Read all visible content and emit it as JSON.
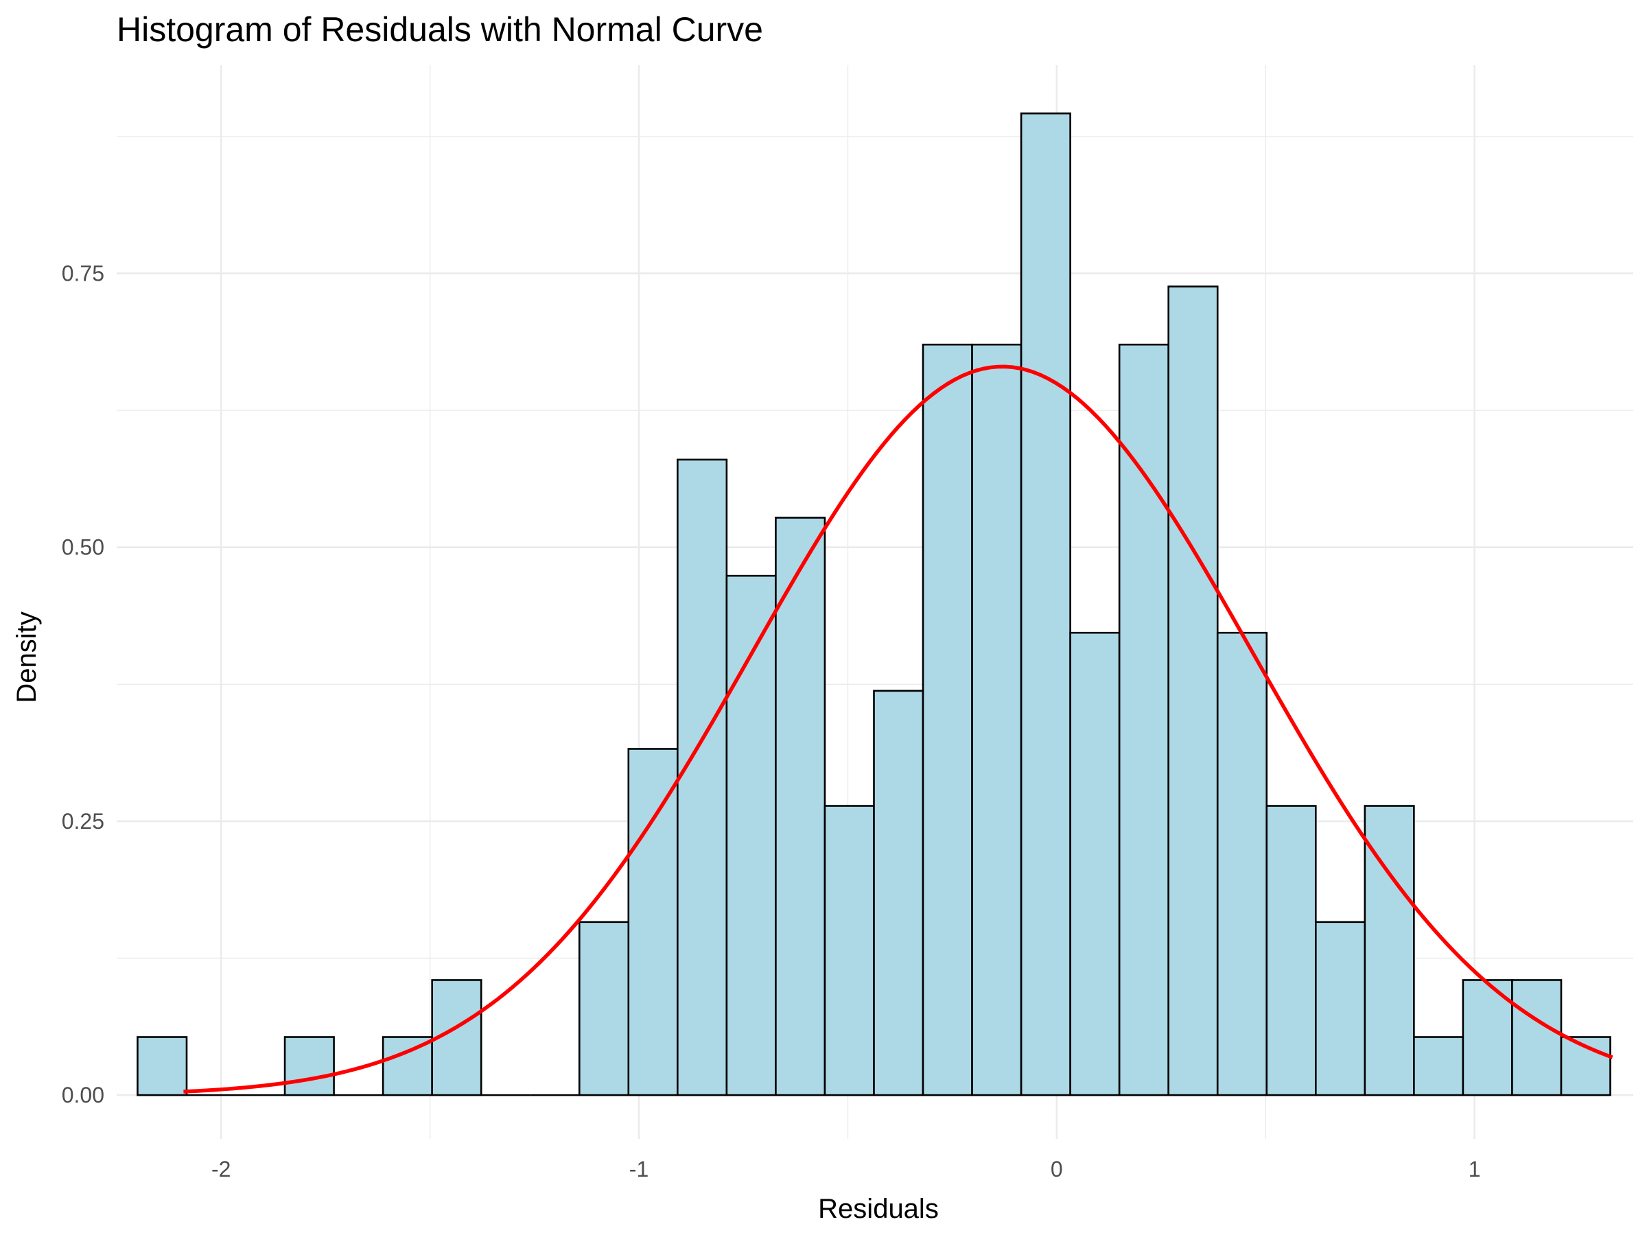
{
  "chart_data": {
    "type": "bar",
    "title": "Histogram of Residuals with Normal Curve",
    "xlabel": "Residuals",
    "ylabel": "Density",
    "xlim": [
      -2.25,
      1.38
    ],
    "ylim": [
      -0.04,
      0.94
    ],
    "x_ticks": [
      -2,
      -1,
      0,
      1
    ],
    "x_tick_labels": [
      "-2",
      "-1",
      "0",
      "1"
    ],
    "y_ticks": [
      0,
      0.25,
      0.5,
      0.75
    ],
    "y_tick_labels": [
      "0.00",
      "0.25",
      "0.50",
      "0.75"
    ],
    "grid": true,
    "bins": {
      "start": -2.2,
      "width": 0.1175,
      "values": [
        0.053,
        0,
        0,
        0.053,
        0,
        0.053,
        0.105,
        0,
        0,
        0.158,
        0.316,
        0.58,
        0.474,
        0.527,
        0.264,
        0.369,
        0.685,
        0.685,
        0.896,
        0.422,
        0.685,
        0.738,
        0.422,
        0.264,
        0.158,
        0.264,
        0.053,
        0.105,
        0.105,
        0.053
      ]
    },
    "bar_fill": "#add8e6",
    "bar_stroke": "#000000",
    "normal_curve": {
      "mean": -0.13,
      "sd": 0.6,
      "color": "#ff0000",
      "x_range": [
        -2.09,
        1.33
      ]
    }
  }
}
